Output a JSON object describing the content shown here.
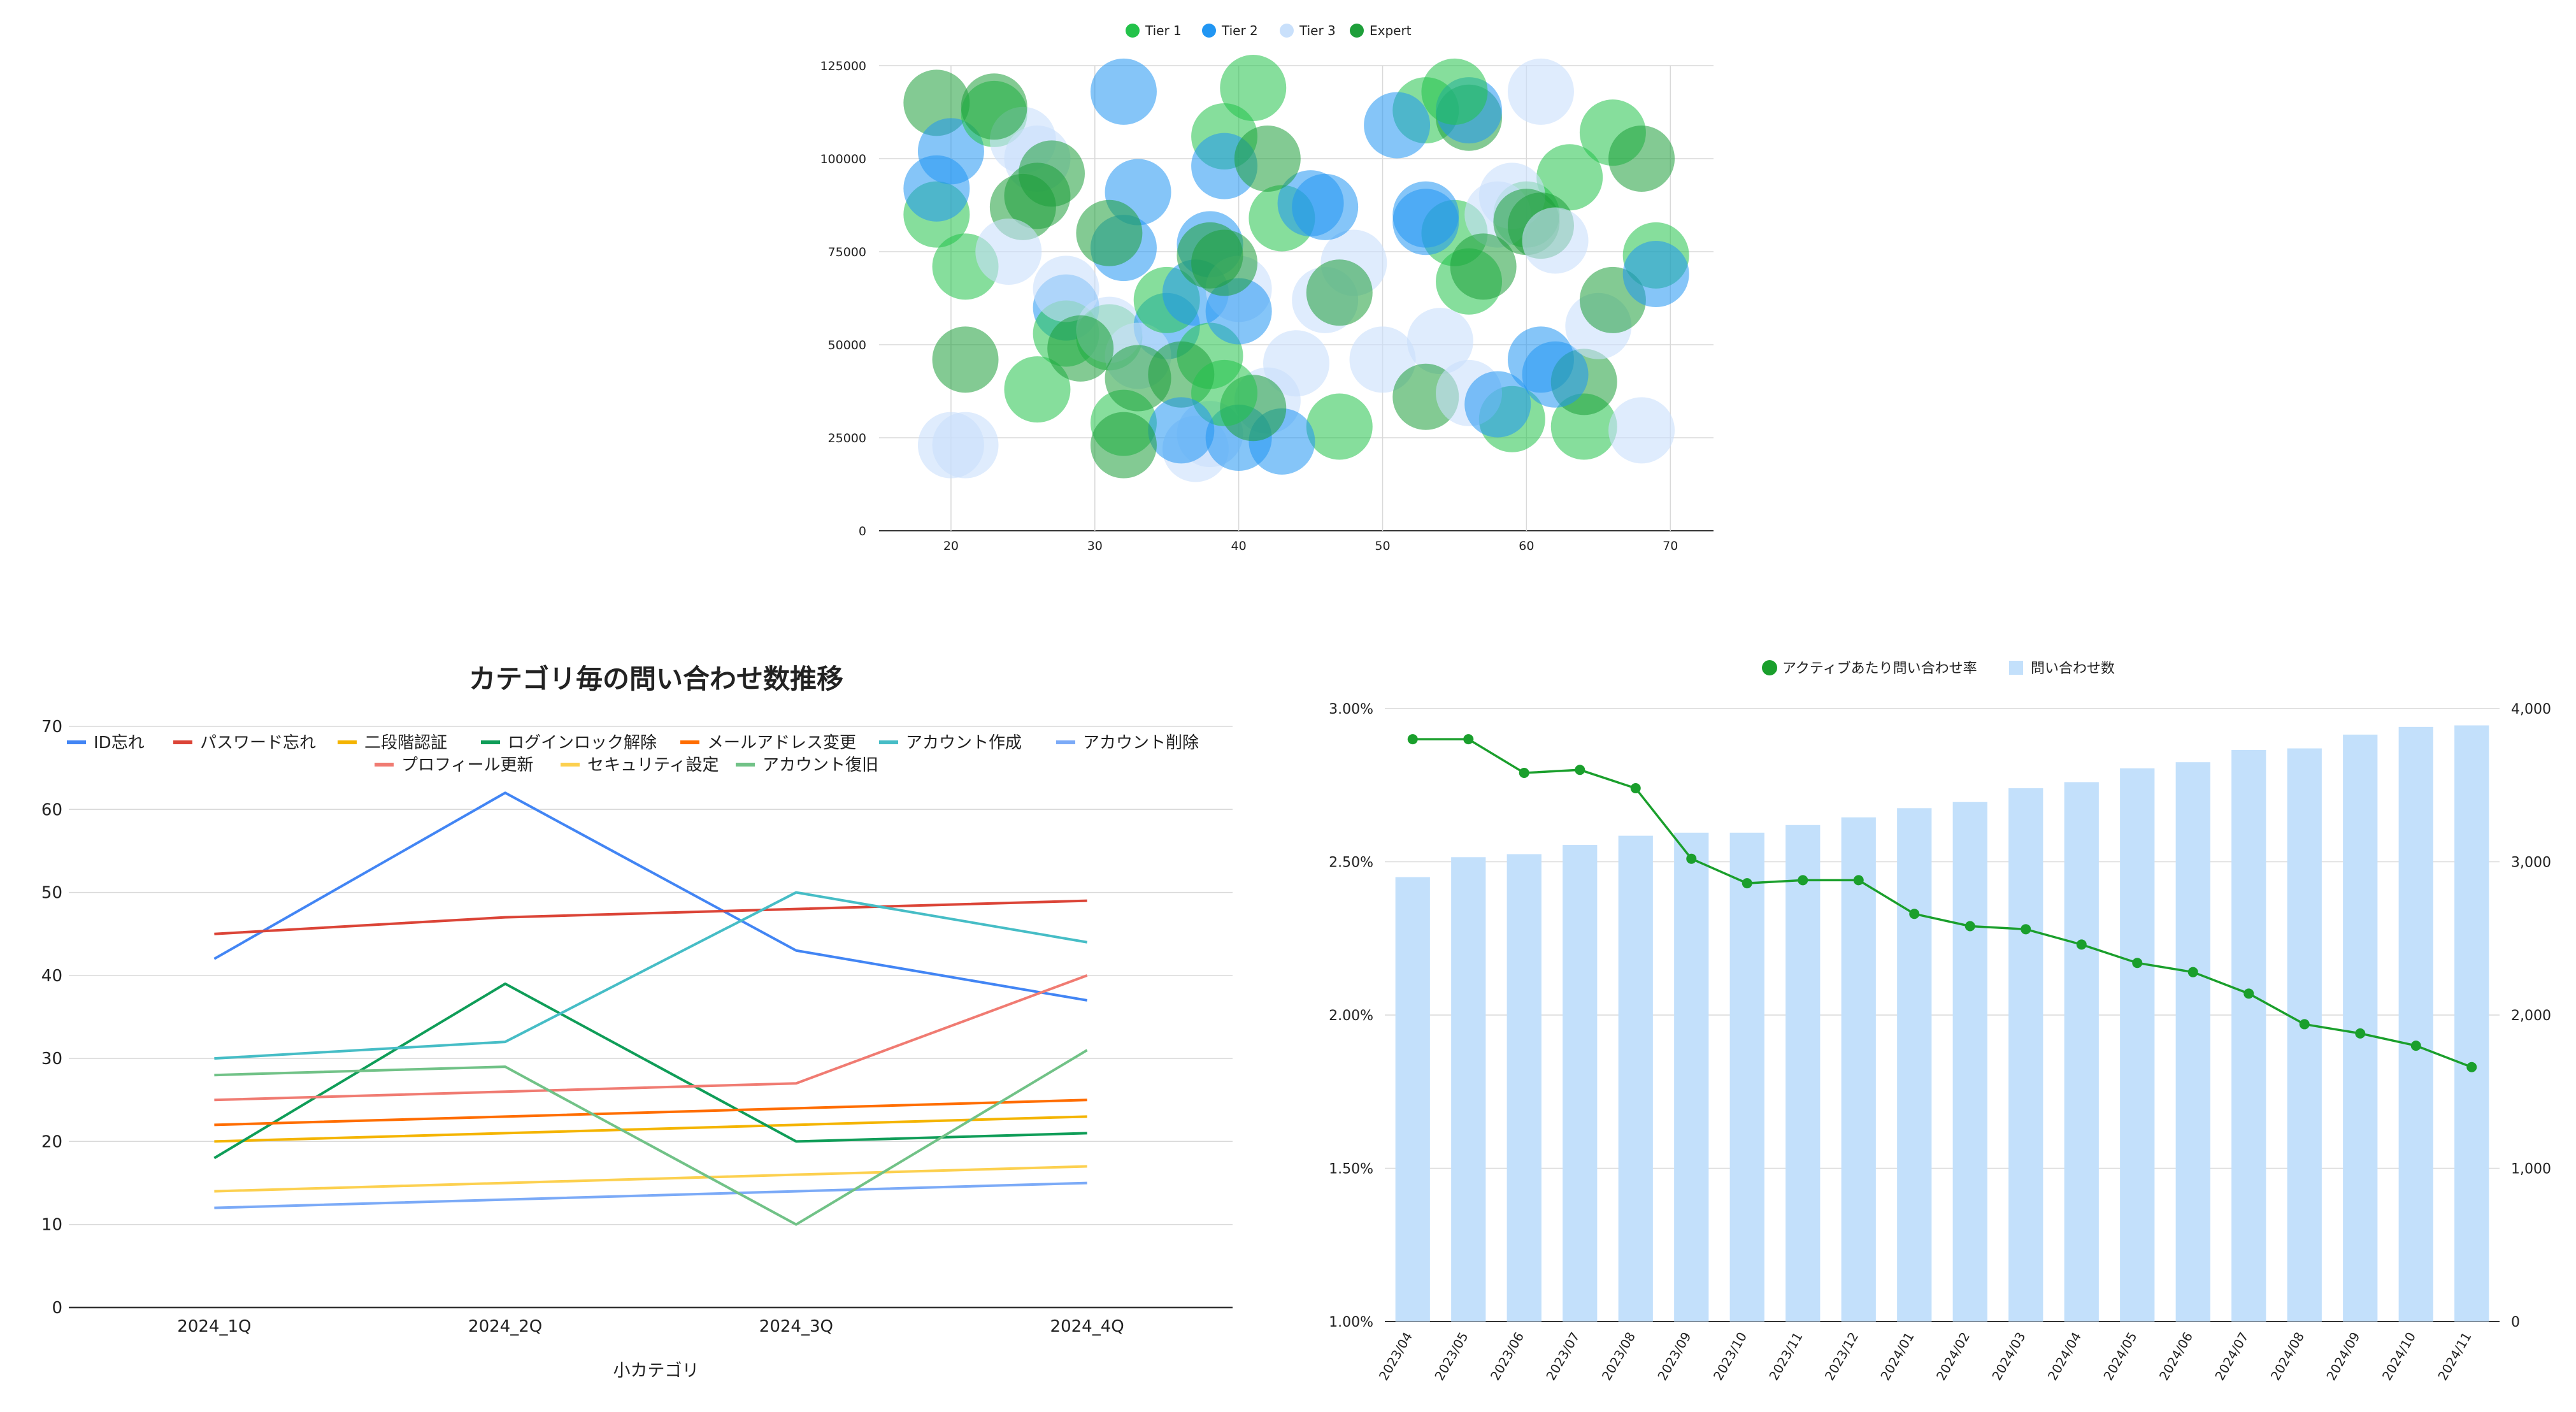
{
  "colors": {
    "tier1": "#23c24a",
    "tier2": "#2196f3",
    "tier3": "#c9e0fb",
    "expert": "#1e9f3a",
    "grid": "#d9d9d9",
    "axis": "#333333",
    "bar": "#c3e0fb",
    "rate_line": "#1a9f2c"
  },
  "chart_data": [
    {
      "type": "scatter",
      "title": "",
      "xlabel": "",
      "ylabel": "",
      "xlim": [
        15,
        73
      ],
      "ylim": [
        0,
        125000
      ],
      "xticks": [
        20,
        30,
        40,
        50,
        60,
        70
      ],
      "yticks": [
        0,
        25000,
        50000,
        75000,
        100000,
        125000
      ],
      "grid": true,
      "legend_position": "top",
      "series": [
        {
          "name": "Tier 1",
          "points": [
            [
              19,
              85000
            ],
            [
              21,
              71000
            ],
            [
              23,
              112000
            ],
            [
              26,
              38000
            ],
            [
              28,
              53000
            ],
            [
              31,
              52000
            ],
            [
              32,
              29000
            ],
            [
              35,
              62000
            ],
            [
              38,
              47000
            ],
            [
              39,
              106000
            ],
            [
              41,
              119000
            ],
            [
              43,
              84000
            ],
            [
              47,
              28000
            ],
            [
              53,
              113000
            ],
            [
              55,
              80000
            ],
            [
              56,
              67000
            ],
            [
              59,
              30000
            ],
            [
              60,
              85000
            ],
            [
              63,
              95000
            ],
            [
              64,
              28000
            ],
            [
              66,
              107000
            ],
            [
              69,
              74000
            ],
            [
              39,
              37000
            ],
            [
              55,
              118000
            ]
          ]
        },
        {
          "name": "Tier 2",
          "points": [
            [
              19,
              92000
            ],
            [
              20,
              102000
            ],
            [
              28,
              60000
            ],
            [
              32,
              118000
            ],
            [
              32,
              76000
            ],
            [
              33,
              91000
            ],
            [
              35,
              55000
            ],
            [
              37,
              64000
            ],
            [
              38,
              77000
            ],
            [
              39,
              98000
            ],
            [
              40,
              59000
            ],
            [
              40,
              25000
            ],
            [
              43,
              24000
            ],
            [
              45,
              88000
            ],
            [
              46,
              87000
            ],
            [
              51,
              109000
            ],
            [
              53,
              85000
            ],
            [
              53,
              83000
            ],
            [
              56,
              113000
            ],
            [
              58,
              34000
            ],
            [
              61,
              46000
            ],
            [
              62,
              42000
            ],
            [
              69,
              69000
            ],
            [
              36,
              27000
            ]
          ]
        },
        {
          "name": "Tier 3",
          "points": [
            [
              20,
              23000
            ],
            [
              21,
              23000
            ],
            [
              25,
              105000
            ],
            [
              26,
              100000
            ],
            [
              28,
              65000
            ],
            [
              31,
              54000
            ],
            [
              33,
              47000
            ],
            [
              37,
              22000
            ],
            [
              38,
              26000
            ],
            [
              40,
              65000
            ],
            [
              42,
              35000
            ],
            [
              44,
              45000
            ],
            [
              46,
              62000
            ],
            [
              48,
              72000
            ],
            [
              50,
              46000
            ],
            [
              54,
              51000
            ],
            [
              56,
              37000
            ],
            [
              58,
              85000
            ],
            [
              59,
              90000
            ],
            [
              61,
              118000
            ],
            [
              62,
              78000
            ],
            [
              65,
              55000
            ],
            [
              68,
              27000
            ],
            [
              24,
              75000
            ]
          ]
        },
        {
          "name": "Expert",
          "points": [
            [
              19,
              115000
            ],
            [
              21,
              46000
            ],
            [
              23,
              114000
            ],
            [
              25,
              87000
            ],
            [
              26,
              90000
            ],
            [
              27,
              96000
            ],
            [
              29,
              49000
            ],
            [
              31,
              80000
            ],
            [
              33,
              41000
            ],
            [
              36,
              42000
            ],
            [
              38,
              74000
            ],
            [
              39,
              72000
            ],
            [
              41,
              33000
            ],
            [
              42,
              100000
            ],
            [
              47,
              64000
            ],
            [
              53,
              36000
            ],
            [
              56,
              111000
            ],
            [
              57,
              71000
            ],
            [
              60,
              83000
            ],
            [
              61,
              82000
            ],
            [
              64,
              40000
            ],
            [
              66,
              62000
            ],
            [
              68,
              100000
            ],
            [
              32,
              23000
            ]
          ]
        }
      ]
    },
    {
      "type": "line",
      "title": "カテゴリ毎の問い合わせ数推移",
      "xlabel": "小カテゴリ",
      "ylabel": "",
      "categories": [
        "2024_1Q",
        "2024_2Q",
        "2024_3Q",
        "2024_4Q"
      ],
      "ylim": [
        0,
        70
      ],
      "yticks": [
        0,
        10,
        20,
        30,
        40,
        50,
        60,
        70
      ],
      "grid": true,
      "legend_position": "top",
      "series": [
        {
          "name": "ID忘れ",
          "color": "#4285f4",
          "values": [
            42,
            62,
            43,
            37
          ]
        },
        {
          "name": "パスワード忘れ",
          "color": "#db4437",
          "values": [
            45,
            47,
            48,
            49
          ]
        },
        {
          "name": "二段階認証",
          "color": "#f4b400",
          "values": [
            20,
            21,
            22,
            23
          ]
        },
        {
          "name": "ログインロック解除",
          "color": "#0f9d58",
          "values": [
            18,
            39,
            20,
            21
          ]
        },
        {
          "name": "メールアドレス変更",
          "color": "#ff6d00",
          "values": [
            22,
            23,
            24,
            25
          ]
        },
        {
          "name": "アカウント作成",
          "color": "#46bdc6",
          "values": [
            30,
            32,
            50,
            44
          ]
        },
        {
          "name": "アカウント削除",
          "color": "#7baaf7",
          "values": [
            12,
            13,
            14,
            15
          ]
        },
        {
          "name": "プロフィール更新",
          "color": "#f07b72",
          "values": [
            25,
            26,
            27,
            40
          ]
        },
        {
          "name": "セキュリティ設定",
          "color": "#fcd04f",
          "values": [
            14,
            15,
            16,
            17
          ]
        },
        {
          "name": "アカウント復旧",
          "color": "#71c287",
          "values": [
            28,
            29,
            10,
            31
          ]
        }
      ]
    },
    {
      "type": "bar",
      "title": "",
      "xlabel": "",
      "ylabel": "",
      "categories": [
        "2023/04",
        "2023/05",
        "2023/06",
        "2023/07",
        "2023/08",
        "2023/09",
        "2023/10",
        "2023/11",
        "2023/12",
        "2024/01",
        "2024/02",
        "2024/03",
        "2024/04",
        "2024/05",
        "2024/06",
        "2024/07",
        "2024/08",
        "2024/09",
        "2024/10",
        "2024/11"
      ],
      "left_axis": {
        "ylim": [
          1.0,
          3.0
        ],
        "ticks": [
          "1.00%",
          "1.50%",
          "2.00%",
          "2.50%",
          "3.00%"
        ]
      },
      "right_axis": {
        "ylim": [
          0,
          4000
        ],
        "ticks": [
          "0",
          "1,000",
          "2,000",
          "3,000",
          "4,000"
        ]
      },
      "grid": true,
      "legend_position": "top",
      "series": [
        {
          "name": "アクティブあたり問い合わせ率",
          "type": "line",
          "axis": "left",
          "values": [
            2.9,
            2.9,
            2.79,
            2.8,
            2.74,
            2.51,
            2.43,
            2.44,
            2.44,
            2.33,
            2.29,
            2.28,
            2.23,
            2.17,
            2.14,
            2.07,
            1.97,
            1.94,
            1.9,
            1.83
          ]
        },
        {
          "name": "問い合わせ数",
          "type": "bar",
          "axis": "right",
          "values": [
            2900,
            3030,
            3050,
            3110,
            3170,
            3190,
            3190,
            3240,
            3290,
            3350,
            3390,
            3480,
            3520,
            3610,
            3650,
            3730,
            3740,
            3830,
            3880,
            3890
          ]
        }
      ]
    }
  ]
}
